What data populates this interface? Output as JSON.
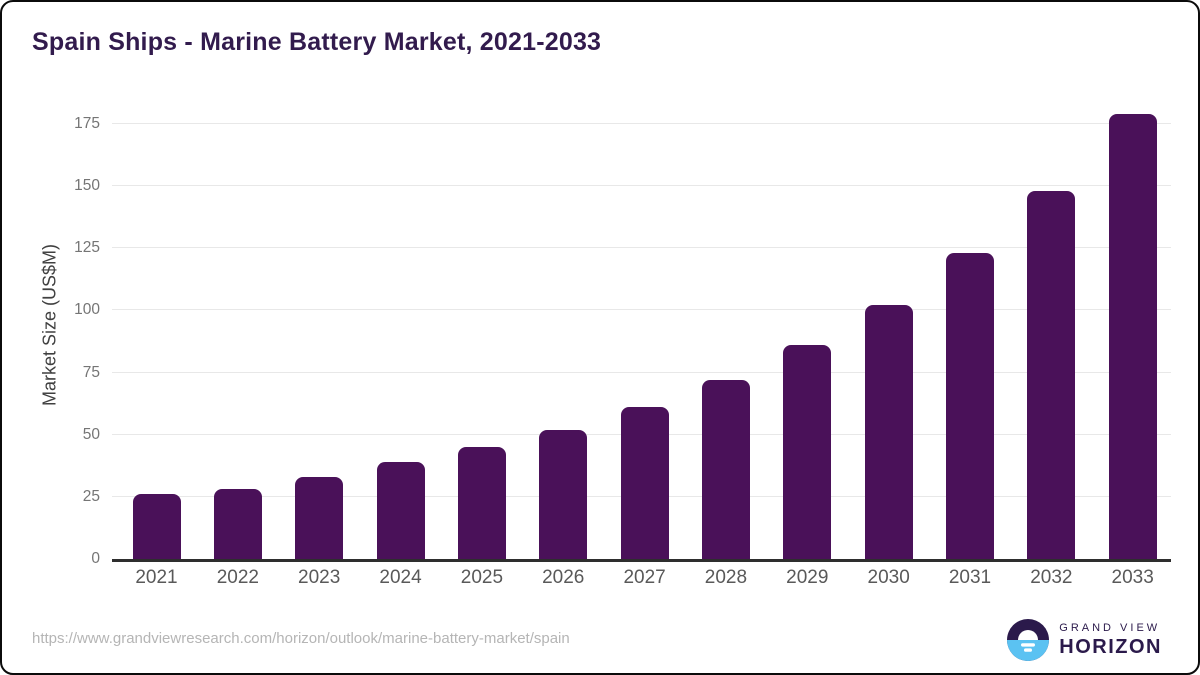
{
  "chart_data": {
    "type": "bar",
    "title": "Spain Ships - Marine Battery Market, 2021-2033",
    "xlabel": "",
    "ylabel": "Market Size (US$M)",
    "categories": [
      "2021",
      "2022",
      "2023",
      "2024",
      "2025",
      "2026",
      "2027",
      "2028",
      "2029",
      "2030",
      "2031",
      "2032",
      "2033"
    ],
    "values": [
      26,
      28,
      33,
      39,
      45,
      52,
      61,
      72,
      86,
      102,
      123,
      148,
      179
    ],
    "ylim": [
      0,
      180
    ],
    "yticks": [
      0,
      25,
      50,
      75,
      100,
      125,
      150,
      175
    ],
    "grid": "horizontal",
    "legend": "none",
    "bar_color": "#4A1159"
  },
  "colors": {
    "title": "#321b4d",
    "bar": "#4A1159",
    "logo_purple": "#2b1a4b",
    "logo_blue": "#5BC2F2",
    "gridline": "#e8e8e8"
  },
  "footer": {
    "url": "https://www.grandviewresearch.com/horizon/outlook/marine-battery-market/spain",
    "logo": {
      "top_label": "GRAND VIEW",
      "bottom_label": "HORIZON"
    }
  }
}
